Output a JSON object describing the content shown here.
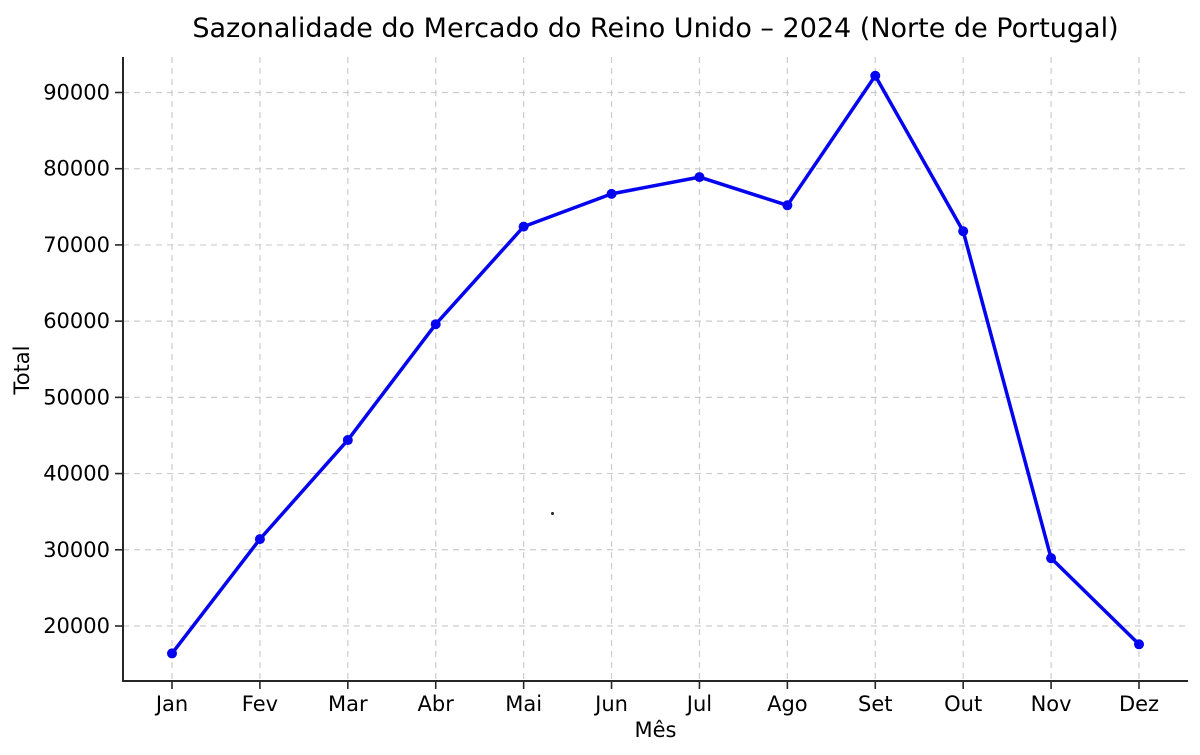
{
  "chart_data": {
    "type": "line",
    "title": "Sazonalidade do Mercado do Reino Unido – 2024 (Norte de Portugal)",
    "xlabel": "Mês",
    "ylabel": "Total",
    "categories": [
      "Jan",
      "Fev",
      "Mar",
      "Abr",
      "Mai",
      "Jun",
      "Jul",
      "Ago",
      "Set",
      "Out",
      "Nov",
      "Dez"
    ],
    "series": [
      {
        "name": "Total",
        "values": [
          16400,
          31400,
          44400,
          59600,
          72400,
          76700,
          78900,
          75200,
          92200,
          71800,
          28900,
          17600
        ]
      }
    ],
    "yticks": [
      20000,
      30000,
      40000,
      50000,
      60000,
      70000,
      80000,
      90000
    ],
    "ylim": [
      12800,
      94700
    ],
    "grid": true,
    "grid_style": "dashed",
    "legend_position": "none",
    "marker": "circle",
    "colors": {
      "line": "#0404ee",
      "marker": "#0404ee",
      "grid": "#cccccc",
      "axis": "#262626",
      "tick_text": "#000000"
    }
  }
}
